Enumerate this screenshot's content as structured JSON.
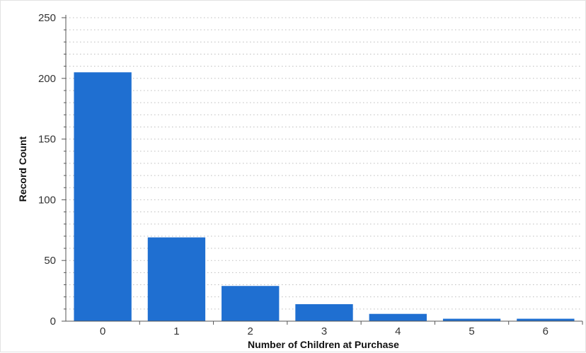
{
  "chart_data": {
    "type": "bar",
    "title": "",
    "xlabel": "Number of Children at Purchase",
    "ylabel": "Record Count",
    "categories": [
      "0",
      "1",
      "2",
      "3",
      "4",
      "5",
      "6"
    ],
    "values": [
      205,
      69,
      29,
      14,
      6,
      2,
      2
    ],
    "ylim": [
      0,
      250
    ],
    "yticks": [
      "0",
      "50",
      "100",
      "150",
      "200",
      "250"
    ],
    "grid": "dotted horizontal",
    "legend": "none",
    "bar_color": "#1f6fd1"
  }
}
